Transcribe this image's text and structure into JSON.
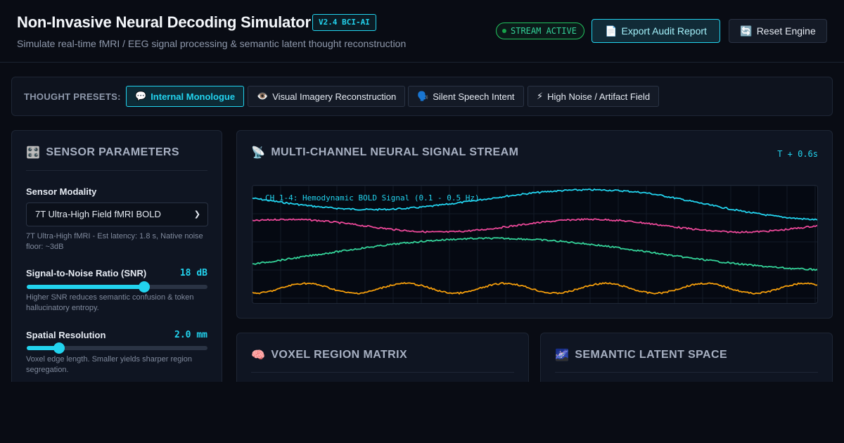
{
  "header": {
    "title": "Non-Invasive Neural Decoding Simulator",
    "version": "V2.4 BCI-AI",
    "subtitle": "Simulate real-time fMRI / EEG signal processing & semantic latent thought reconstruction",
    "stream_status": "STREAM ACTIVE",
    "export_label": "Export Audit Report",
    "export_icon": "📄",
    "reset_label": "Reset Engine",
    "reset_icon": "🔄"
  },
  "presets": {
    "label": "THOUGHT PRESETS:",
    "items": [
      {
        "icon": "💬",
        "label": "Internal Monologue",
        "active": true
      },
      {
        "icon": "👁️",
        "label": "Visual Imagery Reconstruction",
        "active": false
      },
      {
        "icon": "🗣️",
        "label": "Silent Speech Intent",
        "active": false
      },
      {
        "icon": "⚡",
        "label": "High Noise / Artifact Field",
        "active": false
      }
    ]
  },
  "sensor": {
    "title": "SENSOR PARAMETERS",
    "icon": "🎛️",
    "modality_label": "Sensor Modality",
    "modality_value": "7T Ultra-High Field fMRI BOLD",
    "modality_hint": "7T Ultra-High fMRI - Est latency: 1.8 s, Native noise floor: ~3dB",
    "snr_label": "Signal-to-Noise Ratio (SNR)",
    "snr_value": "18 dB",
    "snr_fraction": 0.65,
    "snr_hint": "Higher SNR reduces semantic confusion & token hallucinatory entropy.",
    "spatial_label": "Spatial Resolution",
    "spatial_value": "2.0 mm",
    "spatial_fraction": 0.18,
    "spatial_hint": "Voxel edge length. Smaller yields sharper region segregation."
  },
  "signal": {
    "title": "MULTI-CHANNEL NEURAL SIGNAL STREAM",
    "icon": "📡",
    "time": "T + 0.6s",
    "channel_label": "CH 1-4: Hemodynamic BOLD Signal (0.1 - 0.5 Hz)",
    "colors": [
      "#22d3ee",
      "#ec4899",
      "#34d399",
      "#f59e0b"
    ]
  },
  "voxel": {
    "title": "VOXEL REGION MATRIX",
    "icon": "🧠"
  },
  "semantic": {
    "title": "SEMANTIC LATENT SPACE",
    "icon": "🌌"
  }
}
